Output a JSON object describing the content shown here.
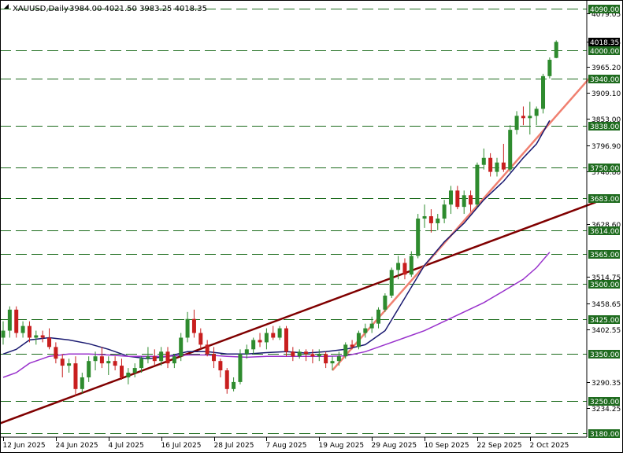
{
  "header": {
    "title": "XAUUSD,Daily",
    "ohlc": "3984.00 4021.50 3983.25 4018.35"
  },
  "colors": {
    "background": "#ffffff",
    "candle_up": "#2e8b2e",
    "candle_down": "#c81e1e",
    "level_line": "#1a6a1a",
    "level_label_bg": "#1e6b1e",
    "current_price_bg": "#000000",
    "trend_long": "#800000",
    "trend_short": "#f08070",
    "ma_fast": "#000080",
    "ma_mid": "#191970",
    "ma_slow": "#9932cc",
    "axis": "#000000"
  },
  "chart_data": {
    "type": "candlestick",
    "symbol": "XAUUSD",
    "timeframe": "Daily",
    "ylim": [
      3172,
      4108
    ],
    "y_ticks": [
      4079.05,
      4018.35,
      3965.2,
      3909.1,
      3853.0,
      3796.9,
      3740.8,
      3628.6,
      3514.75,
      3458.65,
      3402.55,
      3290.35,
      3234.25
    ],
    "y_tick_labels": [
      "4079.05",
      "4018.35",
      "3965.20",
      "3909.10",
      "3853.00",
      "3796.90",
      "3740.80",
      "3628.60",
      "3514.75",
      "3458.65",
      "3402.55",
      "3290.35",
      "3234.25"
    ],
    "x_tick_labels": [
      "12 Jun 2025",
      "24 Jun 2025",
      "4 Jul 2025",
      "16 Jul 2025",
      "28 Jul 2025",
      "7 Aug 2025",
      "19 Aug 2025",
      "29 Aug 2025",
      "10 Sep 2025",
      "22 Sep 2025",
      "2 Oct 2025"
    ],
    "x_tick_index": [
      0,
      8,
      16,
      24,
      32,
      40,
      48,
      56,
      64,
      72,
      80
    ],
    "current_price": "4018.35",
    "horizontal_levels": [
      {
        "value": 4090.0,
        "label": "4090.00"
      },
      {
        "value": 4000.0,
        "label": "4000.00"
      },
      {
        "value": 3940.0,
        "label": "3940.00"
      },
      {
        "value": 3838.0,
        "label": "3838.00"
      },
      {
        "value": 3750.0,
        "label": "3750.00"
      },
      {
        "value": 3683.0,
        "label": "3683.00"
      },
      {
        "value": 3614.0,
        "label": "3614.00"
      },
      {
        "value": 3565.0,
        "label": "3565.00"
      },
      {
        "value": 3500.0,
        "label": "3500.00"
      },
      {
        "value": 3425.0,
        "label": "3425.00"
      },
      {
        "value": 3350.0,
        "label": "3350.00"
      },
      {
        "value": 3250.0,
        "label": "3250.00"
      },
      {
        "value": 3180.0,
        "label": "3180.00"
      }
    ],
    "candles": [
      {
        "o": 3385,
        "h": 3420,
        "l": 3370,
        "c": 3400
      },
      {
        "o": 3400,
        "h": 3452,
        "l": 3385,
        "c": 3445
      },
      {
        "o": 3445,
        "h": 3452,
        "l": 3385,
        "c": 3395
      },
      {
        "o": 3395,
        "h": 3420,
        "l": 3385,
        "c": 3410
      },
      {
        "o": 3410,
        "h": 3420,
        "l": 3375,
        "c": 3385
      },
      {
        "o": 3385,
        "h": 3400,
        "l": 3370,
        "c": 3390
      },
      {
        "o": 3390,
        "h": 3400,
        "l": 3375,
        "c": 3385
      },
      {
        "o": 3385,
        "h": 3405,
        "l": 3360,
        "c": 3365
      },
      {
        "o": 3365,
        "h": 3375,
        "l": 3330,
        "c": 3340
      },
      {
        "o": 3340,
        "h": 3350,
        "l": 3300,
        "c": 3325
      },
      {
        "o": 3325,
        "h": 3340,
        "l": 3310,
        "c": 3330
      },
      {
        "o": 3330,
        "h": 3345,
        "l": 3260,
        "c": 3275
      },
      {
        "o": 3275,
        "h": 3310,
        "l": 3265,
        "c": 3300
      },
      {
        "o": 3300,
        "h": 3345,
        "l": 3290,
        "c": 3335
      },
      {
        "o": 3335,
        "h": 3355,
        "l": 3315,
        "c": 3345
      },
      {
        "o": 3345,
        "h": 3365,
        "l": 3320,
        "c": 3330
      },
      {
        "o": 3330,
        "h": 3345,
        "l": 3305,
        "c": 3335
      },
      {
        "o": 3335,
        "h": 3345,
        "l": 3315,
        "c": 3325
      },
      {
        "o": 3325,
        "h": 3340,
        "l": 3295,
        "c": 3300
      },
      {
        "o": 3300,
        "h": 3320,
        "l": 3285,
        "c": 3310
      },
      {
        "o": 3310,
        "h": 3330,
        "l": 3300,
        "c": 3320
      },
      {
        "o": 3320,
        "h": 3345,
        "l": 3310,
        "c": 3340
      },
      {
        "o": 3340,
        "h": 3365,
        "l": 3330,
        "c": 3345
      },
      {
        "o": 3345,
        "h": 3360,
        "l": 3325,
        "c": 3335
      },
      {
        "o": 3335,
        "h": 3365,
        "l": 3325,
        "c": 3355
      },
      {
        "o": 3355,
        "h": 3365,
        "l": 3320,
        "c": 3330
      },
      {
        "o": 3330,
        "h": 3350,
        "l": 3320,
        "c": 3345
      },
      {
        "o": 3345,
        "h": 3395,
        "l": 3335,
        "c": 3385
      },
      {
        "o": 3385,
        "h": 3440,
        "l": 3375,
        "c": 3425
      },
      {
        "o": 3425,
        "h": 3445,
        "l": 3385,
        "c": 3395
      },
      {
        "o": 3395,
        "h": 3405,
        "l": 3360,
        "c": 3370
      },
      {
        "o": 3370,
        "h": 3380,
        "l": 3345,
        "c": 3350
      },
      {
        "o": 3350,
        "h": 3365,
        "l": 3320,
        "c": 3335
      },
      {
        "o": 3335,
        "h": 3340,
        "l": 3300,
        "c": 3315
      },
      {
        "o": 3315,
        "h": 3320,
        "l": 3265,
        "c": 3275
      },
      {
        "o": 3275,
        "h": 3300,
        "l": 3270,
        "c": 3290
      },
      {
        "o": 3290,
        "h": 3360,
        "l": 3285,
        "c": 3350
      },
      {
        "o": 3350,
        "h": 3370,
        "l": 3340,
        "c": 3360
      },
      {
        "o": 3360,
        "h": 3385,
        "l": 3350,
        "c": 3380
      },
      {
        "o": 3380,
        "h": 3395,
        "l": 3365,
        "c": 3375
      },
      {
        "o": 3375,
        "h": 3405,
        "l": 3360,
        "c": 3395
      },
      {
        "o": 3395,
        "h": 3410,
        "l": 3380,
        "c": 3385
      },
      {
        "o": 3385,
        "h": 3410,
        "l": 3380,
        "c": 3405
      },
      {
        "o": 3405,
        "h": 3410,
        "l": 3345,
        "c": 3355
      },
      {
        "o": 3355,
        "h": 3365,
        "l": 3335,
        "c": 3345
      },
      {
        "o": 3345,
        "h": 3360,
        "l": 3340,
        "c": 3355
      },
      {
        "o": 3355,
        "h": 3360,
        "l": 3335,
        "c": 3350
      },
      {
        "o": 3350,
        "h": 3360,
        "l": 3330,
        "c": 3345
      },
      {
        "o": 3345,
        "h": 3360,
        "l": 3335,
        "c": 3350
      },
      {
        "o": 3350,
        "h": 3355,
        "l": 3320,
        "c": 3330
      },
      {
        "o": 3330,
        "h": 3345,
        "l": 3315,
        "c": 3335
      },
      {
        "o": 3335,
        "h": 3355,
        "l": 3325,
        "c": 3345
      },
      {
        "o": 3345,
        "h": 3375,
        "l": 3340,
        "c": 3370
      },
      {
        "o": 3370,
        "h": 3380,
        "l": 3360,
        "c": 3365
      },
      {
        "o": 3365,
        "h": 3400,
        "l": 3360,
        "c": 3395
      },
      {
        "o": 3395,
        "h": 3415,
        "l": 3385,
        "c": 3405
      },
      {
        "o": 3405,
        "h": 3430,
        "l": 3395,
        "c": 3415
      },
      {
        "o": 3415,
        "h": 3450,
        "l": 3405,
        "c": 3445
      },
      {
        "o": 3445,
        "h": 3480,
        "l": 3440,
        "c": 3475
      },
      {
        "o": 3475,
        "h": 3535,
        "l": 3470,
        "c": 3530
      },
      {
        "o": 3530,
        "h": 3560,
        "l": 3510,
        "c": 3545
      },
      {
        "o": 3545,
        "h": 3555,
        "l": 3510,
        "c": 3520
      },
      {
        "o": 3520,
        "h": 3570,
        "l": 3515,
        "c": 3560
      },
      {
        "o": 3560,
        "h": 3650,
        "l": 3555,
        "c": 3640
      },
      {
        "o": 3640,
        "h": 3670,
        "l": 3620,
        "c": 3645
      },
      {
        "o": 3645,
        "h": 3660,
        "l": 3610,
        "c": 3630
      },
      {
        "o": 3630,
        "h": 3650,
        "l": 3615,
        "c": 3640
      },
      {
        "o": 3640,
        "h": 3680,
        "l": 3630,
        "c": 3670
      },
      {
        "o": 3670,
        "h": 3710,
        "l": 3650,
        "c": 3700
      },
      {
        "o": 3700,
        "h": 3710,
        "l": 3660,
        "c": 3665
      },
      {
        "o": 3665,
        "h": 3700,
        "l": 3650,
        "c": 3690
      },
      {
        "o": 3690,
        "h": 3700,
        "l": 3655,
        "c": 3670
      },
      {
        "o": 3670,
        "h": 3760,
        "l": 3665,
        "c": 3755
      },
      {
        "o": 3755,
        "h": 3790,
        "l": 3745,
        "c": 3770
      },
      {
        "o": 3770,
        "h": 3780,
        "l": 3730,
        "c": 3740
      },
      {
        "o": 3740,
        "h": 3770,
        "l": 3730,
        "c": 3760
      },
      {
        "o": 3760,
        "h": 3800,
        "l": 3740,
        "c": 3745
      },
      {
        "o": 3745,
        "h": 3840,
        "l": 3740,
        "c": 3830
      },
      {
        "o": 3830,
        "h": 3870,
        "l": 3820,
        "c": 3860
      },
      {
        "o": 3860,
        "h": 3880,
        "l": 3840,
        "c": 3855
      },
      {
        "o": 3855,
        "h": 3890,
        "l": 3820,
        "c": 3860
      },
      {
        "o": 3860,
        "h": 3880,
        "l": 3840,
        "c": 3875
      },
      {
        "o": 3875,
        "h": 3950,
        "l": 3865,
        "c": 3945
      },
      {
        "o": 3945,
        "h": 3985,
        "l": 3940,
        "c": 3980
      },
      {
        "o": 3984,
        "h": 4021.5,
        "l": 3983.25,
        "c": 4018.35
      }
    ],
    "moving_averages": [
      {
        "role": "fast",
        "points": [
          [
            0,
            3350
          ],
          [
            2,
            3360
          ],
          [
            4,
            3380
          ],
          [
            7,
            3385
          ],
          [
            10,
            3380
          ],
          [
            13,
            3372
          ],
          [
            16,
            3360
          ],
          [
            19,
            3345
          ],
          [
            22,
            3340
          ],
          [
            25,
            3345
          ],
          [
            28,
            3355
          ],
          [
            31,
            3355
          ],
          [
            34,
            3350
          ],
          [
            37,
            3350
          ],
          [
            40,
            3353
          ],
          [
            43,
            3355
          ],
          [
            46,
            3352
          ],
          [
            49,
            3355
          ],
          [
            52,
            3360
          ],
          [
            55,
            3370
          ],
          [
            58,
            3400
          ],
          [
            61,
            3470
          ],
          [
            64,
            3540
          ],
          [
            67,
            3590
          ],
          [
            70,
            3630
          ],
          [
            73,
            3680
          ],
          [
            76,
            3720
          ],
          [
            79,
            3770
          ],
          [
            81,
            3800
          ],
          [
            83,
            3850
          ]
        ]
      },
      {
        "role": "slow",
        "points": [
          [
            0,
            3300
          ],
          [
            2,
            3310
          ],
          [
            4,
            3330
          ],
          [
            7,
            3345
          ],
          [
            10,
            3350
          ],
          [
            13,
            3350
          ],
          [
            16,
            3348
          ],
          [
            19,
            3345
          ],
          [
            22,
            3345
          ],
          [
            25,
            3345
          ],
          [
            28,
            3348
          ],
          [
            31,
            3348
          ],
          [
            34,
            3345
          ],
          [
            37,
            3343
          ],
          [
            40,
            3345
          ],
          [
            43,
            3345
          ],
          [
            46,
            3345
          ],
          [
            49,
            3345
          ],
          [
            52,
            3346
          ],
          [
            55,
            3355
          ],
          [
            58,
            3370
          ],
          [
            61,
            3385
          ],
          [
            64,
            3400
          ],
          [
            67,
            3420
          ],
          [
            70,
            3440
          ],
          [
            73,
            3460
          ],
          [
            76,
            3485
          ],
          [
            79,
            3510
          ],
          [
            81,
            3535
          ],
          [
            83,
            3568
          ]
        ]
      }
    ],
    "trendlines": [
      {
        "role": "long",
        "from": {
          "index": -4,
          "value": 3183
        },
        "to": {
          "index": 90,
          "value": 3675
        }
      },
      {
        "role": "short",
        "from": {
          "index": 50,
          "value": 3315
        },
        "to": {
          "index": 89,
          "value": 3940
        }
      }
    ],
    "grid": false
  }
}
